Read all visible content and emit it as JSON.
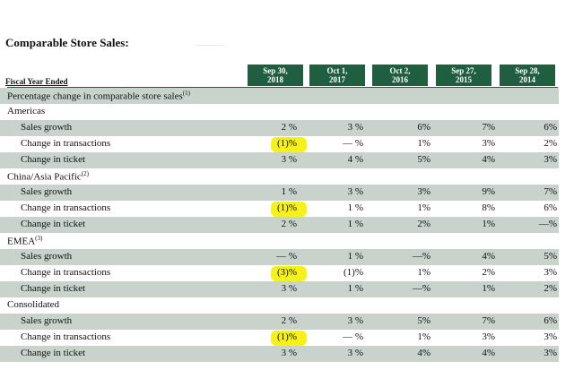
{
  "title": "Comparable Store Sales:",
  "fiscal_year_label": "Fiscal Year Ended",
  "columns": [
    {
      "l1": "Sep 30,",
      "l2": "2018"
    },
    {
      "l1": "Oct 1,",
      "l2": "2017"
    },
    {
      "l1": "Oct 2,",
      "l2": "2016"
    },
    {
      "l1": "Sep 27,",
      "l2": "2015"
    },
    {
      "l1": "Sep 28,",
      "l2": "2014"
    }
  ],
  "percentage_header": {
    "text": "Percentage change in comparable store sales",
    "note": "(1)"
  },
  "sections": {
    "americas": {
      "name": "Americas",
      "note": "",
      "rows": [
        {
          "label": "Sales growth",
          "v": [
            "2 %",
            "3 %",
            "6%",
            "7%",
            "6%"
          ]
        },
        {
          "label": "Change in transactions",
          "v": [
            "(1)%",
            "— %",
            "1%",
            "3%",
            "2%"
          ]
        },
        {
          "label": "Change in ticket",
          "v": [
            "3 %",
            "4 %",
            "5%",
            "4%",
            "3%"
          ]
        }
      ]
    },
    "china": {
      "name": "China/Asia Pacific",
      "note": "(2)",
      "rows": [
        {
          "label": "Sales growth",
          "v": [
            "1 %",
            "3 %",
            "3%",
            "9%",
            "7%"
          ]
        },
        {
          "label": "Change in transactions",
          "v": [
            "(1)%",
            "1 %",
            "1%",
            "8%",
            "6%"
          ]
        },
        {
          "label": "Change in ticket",
          "v": [
            "2 %",
            "1 %",
            "2%",
            "1%",
            "—%"
          ]
        }
      ]
    },
    "emea": {
      "name": "EMEA",
      "note": "(3)",
      "rows": [
        {
          "label": "Sales growth",
          "v": [
            "— %",
            "1 %",
            "—%",
            "4%",
            "5%"
          ]
        },
        {
          "label": "Change in transactions",
          "v": [
            "(3)%",
            "(1)%",
            "1%",
            "2%",
            "3%"
          ]
        },
        {
          "label": "Change in ticket",
          "v": [
            "3 %",
            "1 %",
            "—%",
            "1%",
            "2%"
          ]
        }
      ]
    },
    "consolidated": {
      "name": "Consolidated",
      "note": "",
      "rows": [
        {
          "label": "Sales growth",
          "v": [
            "2 %",
            "3 %",
            "5%",
            "7%",
            "6%"
          ]
        },
        {
          "label": "Change in transactions",
          "v": [
            "(1)%",
            "— %",
            "1%",
            "3%",
            "3%"
          ]
        },
        {
          "label": "Change in ticket",
          "v": [
            "3 %",
            "3 %",
            "4%",
            "4%",
            "3%"
          ]
        }
      ]
    }
  },
  "colors": {
    "header_green": "#1f5f3f",
    "row_shade": "#c8d3cc",
    "highlight": "#f7f11a"
  }
}
